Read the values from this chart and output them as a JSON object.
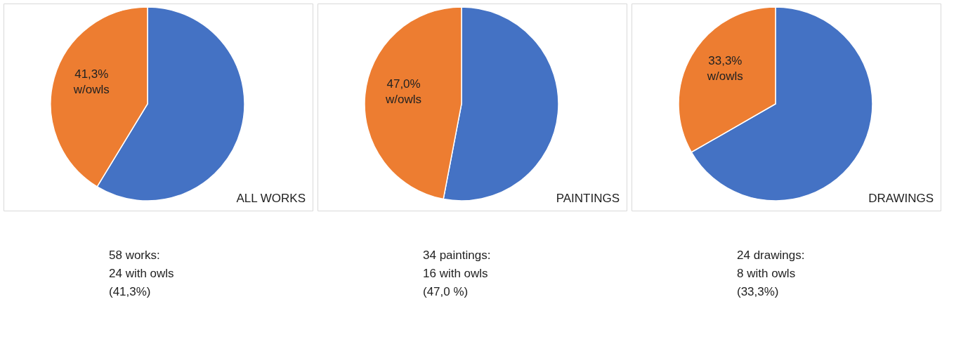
{
  "chart_data": [
    {
      "type": "pie",
      "title": "ALL WORKS",
      "categories": [
        null,
        null
      ],
      "values": [
        58.7,
        41.3
      ],
      "colors": [
        "#4472c4",
        "#ed7d31"
      ],
      "value_labels": [
        null,
        "41,3%\nw/owls"
      ],
      "legend": false,
      "annotations": [
        "58 works:\n24 with owls\n(41,3%)"
      ]
    },
    {
      "type": "pie",
      "title": "PAINTINGS",
      "categories": [
        null,
        null
      ],
      "values": [
        53.0,
        47.0
      ],
      "colors": [
        "#4472c4",
        "#ed7d31"
      ],
      "value_labels": [
        null,
        "47,0%\nw/owls"
      ],
      "legend": false,
      "annotations": [
        "34 paintings:\n16 with owls\n(47,0 %)"
      ]
    },
    {
      "type": "pie",
      "title": "DRAWINGS",
      "categories": [
        null,
        null
      ],
      "values": [
        66.7,
        33.3
      ],
      "colors": [
        "#4472c4",
        "#ed7d31"
      ],
      "value_labels": [
        null,
        "33,3%\nw/owls"
      ],
      "legend": false,
      "annotations": [
        "24 drawings:\n8 with owls\n(33,3%)"
      ]
    }
  ]
}
